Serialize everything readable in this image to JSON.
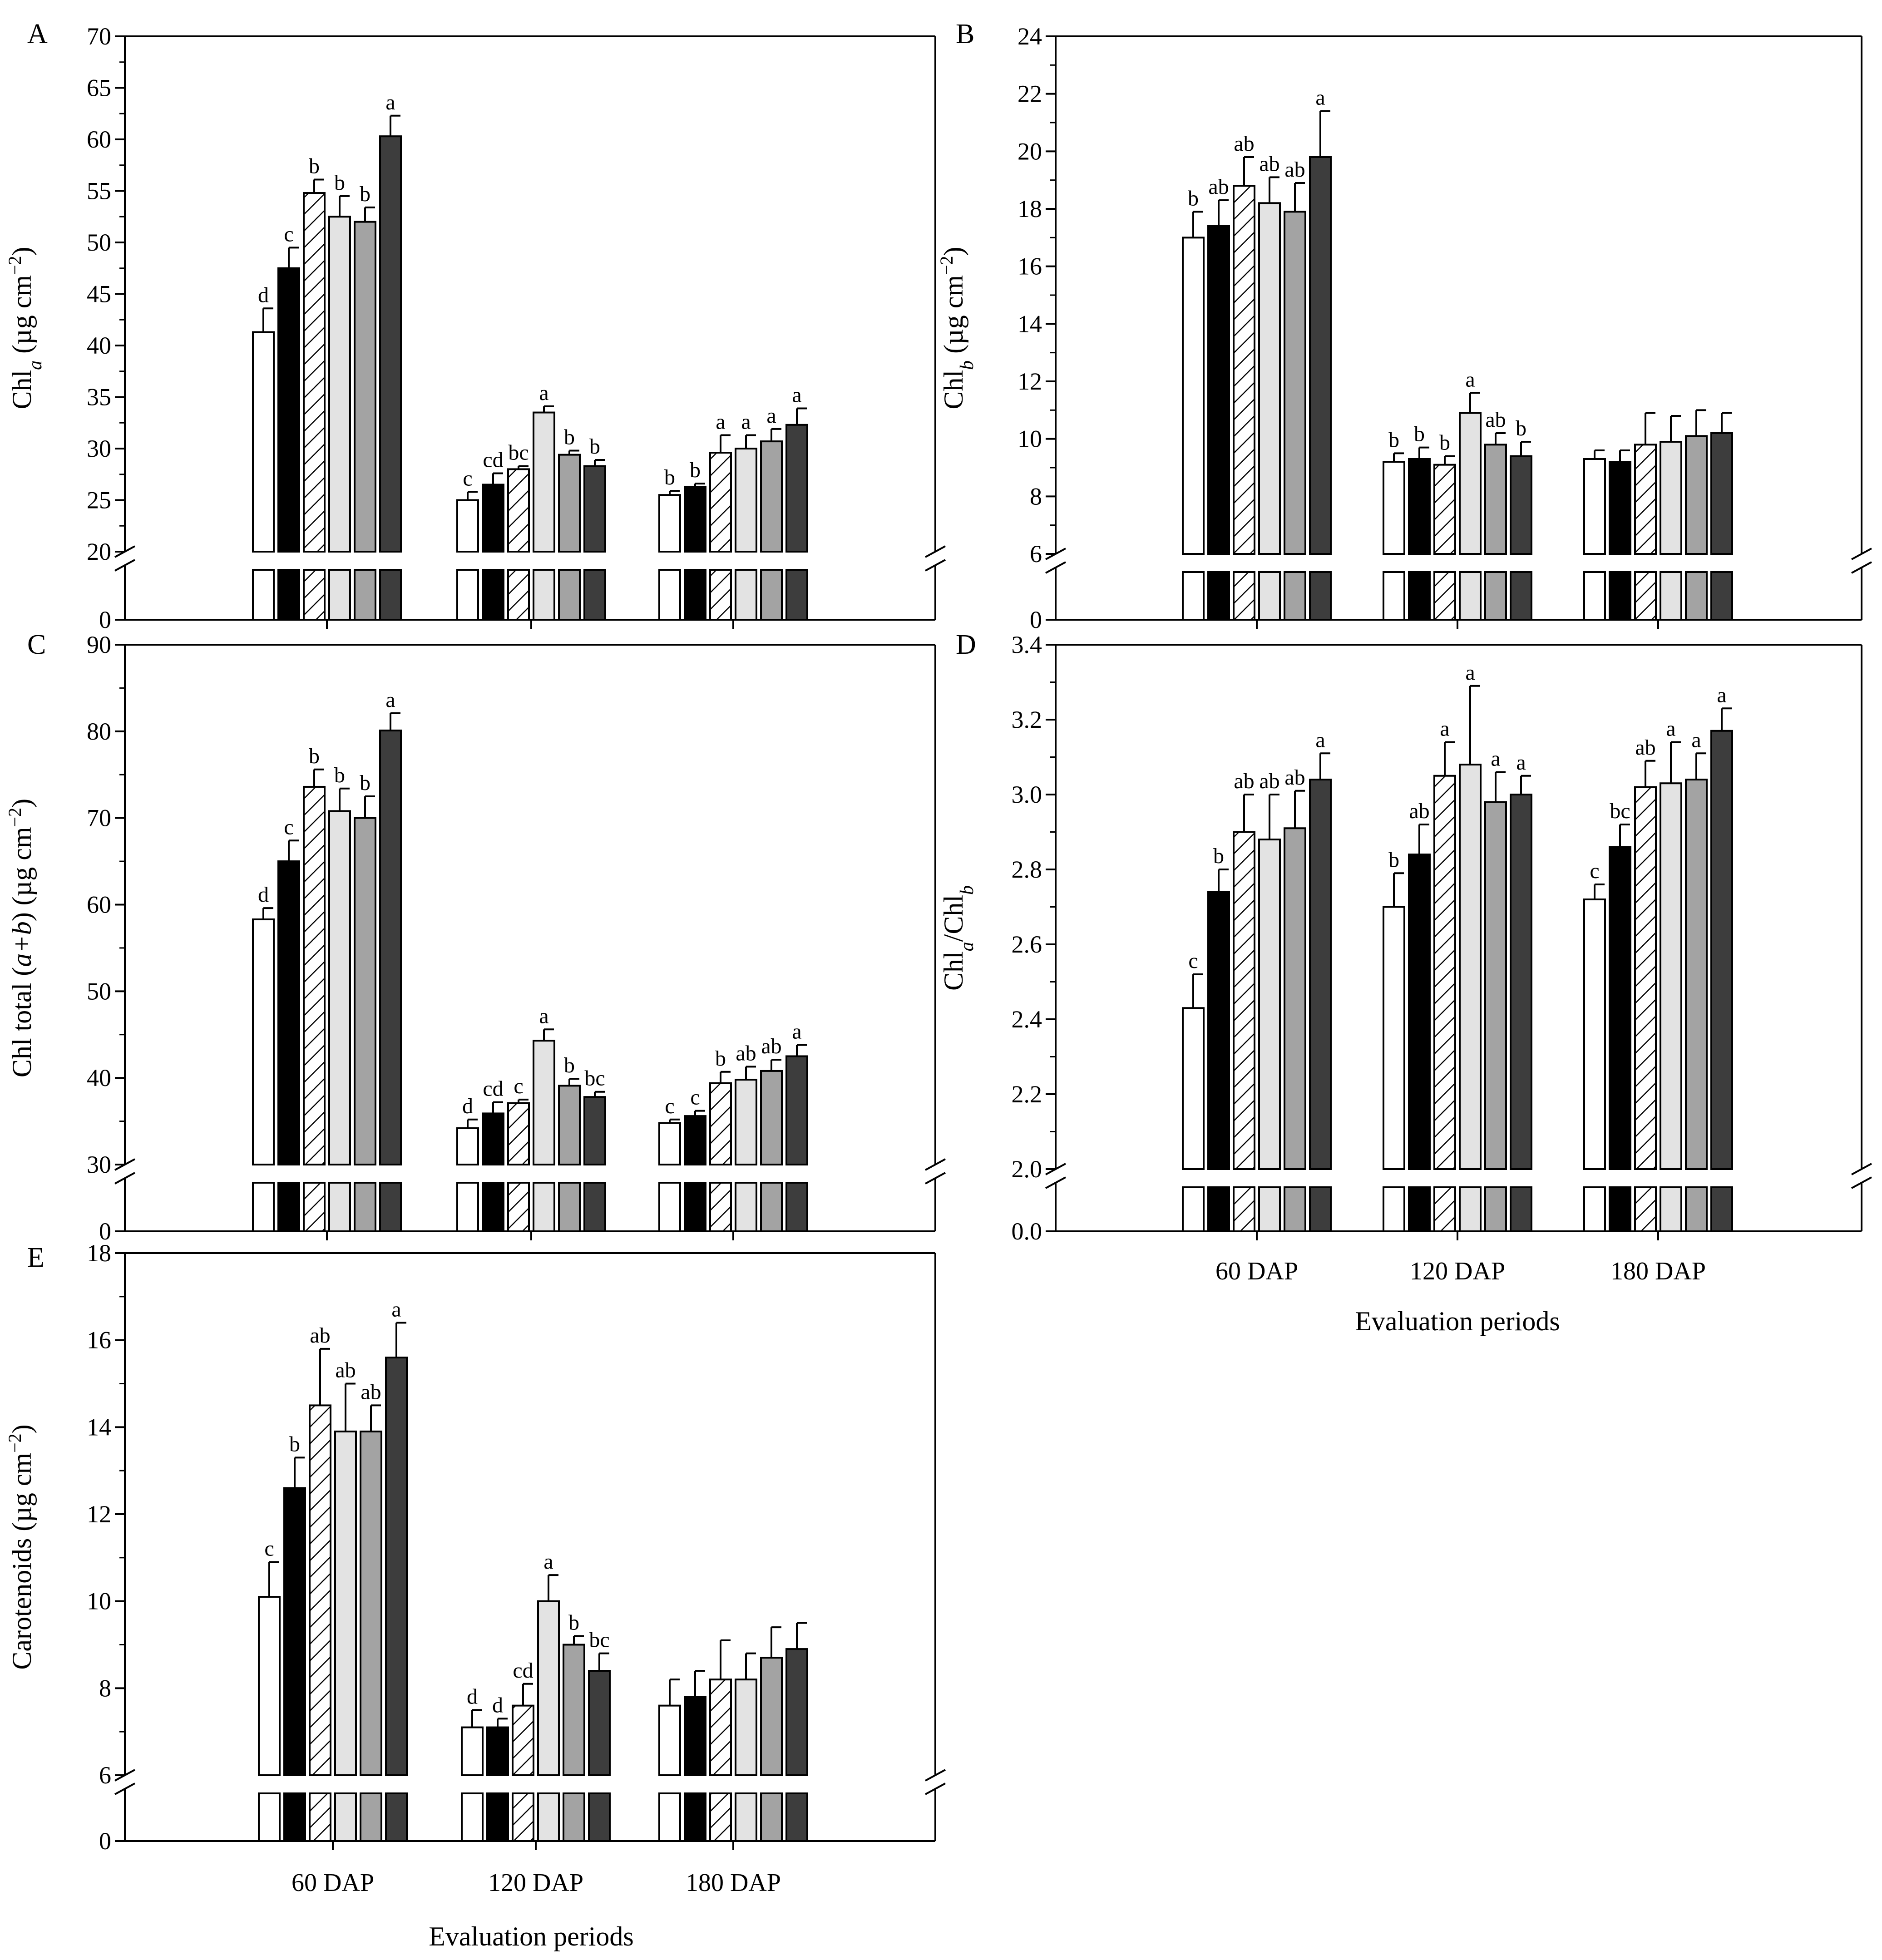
{
  "colors": {
    "treatments": [
      "#ffffff",
      "#000000",
      "hatch",
      "#e3e3e3",
      "#a3a3a3",
      "#3d3d3d"
    ],
    "axis": "#000000"
  },
  "x_axis": {
    "categories": [
      "60 DAP",
      "120 DAP",
      "180 DAP"
    ],
    "title": "Evaluation periods"
  },
  "chart_data": [
    {
      "type": "bar",
      "panel": "A",
      "ylabel_main": "Chl",
      "ylabel_sub": "a",
      "ylabel_unit": " (µg cm",
      "ylabel_exp": "−2",
      "ylabel_close": ")",
      "categories": [
        "60 DAP",
        "120 DAP",
        "180 DAP"
      ],
      "ylim": [
        20,
        70
      ],
      "yticks": [
        20,
        25,
        30,
        35,
        40,
        45,
        50,
        55,
        60,
        65,
        70
      ],
      "ytick_labels": [
        "20",
        "25",
        "30",
        "35",
        "40",
        "45",
        "50",
        "55",
        "60",
        "65",
        "70"
      ],
      "break_tick_label": "0",
      "values": [
        [
          41.3,
          47.5,
          54.8,
          52.5,
          52.0,
          60.3
        ],
        [
          25.0,
          26.5,
          28.0,
          33.5,
          29.4,
          28.3
        ],
        [
          25.5,
          26.3,
          29.6,
          30.0,
          30.7,
          32.3
        ]
      ],
      "errors": [
        [
          2.3,
          2.0,
          1.3,
          2.0,
          1.4,
          2.0
        ],
        [
          0.8,
          1.1,
          0.3,
          0.6,
          0.4,
          0.6
        ],
        [
          0.4,
          0.3,
          1.7,
          1.3,
          1.2,
          1.6
        ]
      ],
      "letters": [
        [
          "d",
          "c",
          "b",
          "b",
          "b",
          "a"
        ],
        [
          "c",
          "cd",
          "bc",
          "a",
          "b",
          "b"
        ],
        [
          "b",
          "b",
          "a",
          "a",
          "a",
          "a"
        ]
      ]
    },
    {
      "type": "bar",
      "panel": "B",
      "ylabel_main": "Chl",
      "ylabel_sub": "b",
      "ylabel_unit": " (µg cm",
      "ylabel_exp": "−2",
      "ylabel_close": ")",
      "categories": [
        "60 DAP",
        "120 DAP",
        "180 DAP"
      ],
      "ylim": [
        6,
        24
      ],
      "yticks": [
        6,
        8,
        10,
        12,
        14,
        16,
        18,
        20,
        22,
        24
      ],
      "ytick_labels": [
        "6",
        "8",
        "10",
        "12",
        "14",
        "16",
        "18",
        "20",
        "22",
        "24"
      ],
      "break_tick_label": "0",
      "values": [
        [
          17.0,
          17.4,
          18.8,
          18.2,
          17.9,
          19.8
        ],
        [
          9.2,
          9.3,
          9.1,
          10.9,
          9.8,
          9.4
        ],
        [
          9.3,
          9.2,
          9.8,
          9.9,
          10.1,
          10.2
        ]
      ],
      "errors": [
        [
          0.9,
          0.9,
          1.0,
          0.9,
          1.0,
          1.6
        ],
        [
          0.3,
          0.4,
          0.3,
          0.7,
          0.4,
          0.5
        ],
        [
          0.3,
          0.4,
          1.1,
          0.9,
          0.9,
          0.7
        ]
      ],
      "letters": [
        [
          "b",
          "ab",
          "ab",
          "ab",
          "ab",
          "a"
        ],
        [
          "b",
          "b",
          "b",
          "a",
          "ab",
          "b"
        ],
        [
          "",
          "",
          "",
          "",
          "",
          ""
        ]
      ]
    },
    {
      "type": "bar",
      "panel": "C",
      "ylabel_main": "Chl total (",
      "ylabel_ital": "a+b",
      "ylabel_unit": ") (µg cm",
      "ylabel_exp": "−2",
      "ylabel_close": ")",
      "categories": [
        "60 DAP",
        "120 DAP",
        "180 DAP"
      ],
      "ylim": [
        30,
        90
      ],
      "yticks": [
        30,
        40,
        50,
        60,
        70,
        80,
        90
      ],
      "ytick_labels": [
        "30",
        "40",
        "50",
        "60",
        "70",
        "80",
        "90"
      ],
      "break_tick_label": "0",
      "values": [
        [
          58.3,
          65.0,
          73.6,
          70.8,
          70.0,
          80.1
        ],
        [
          34.2,
          35.9,
          37.1,
          44.3,
          39.1,
          37.8
        ],
        [
          34.8,
          35.6,
          39.4,
          39.8,
          40.8,
          42.5
        ]
      ],
      "errors": [
        [
          1.3,
          2.4,
          2.0,
          2.6,
          2.5,
          2.0
        ],
        [
          1.0,
          1.3,
          0.4,
          1.3,
          0.8,
          0.6
        ],
        [
          0.4,
          0.6,
          1.3,
          1.5,
          1.3,
          1.3
        ]
      ],
      "letters": [
        [
          "d",
          "c",
          "b",
          "b",
          "b",
          "a"
        ],
        [
          "d",
          "cd",
          "c",
          "a",
          "b",
          "bc"
        ],
        [
          "c",
          "c",
          "b",
          "ab",
          "ab",
          "a"
        ]
      ]
    },
    {
      "type": "bar",
      "panel": "D",
      "ylabel_main": "Chl",
      "ylabel_sub": "a",
      "ylabel_mid": "/Chl",
      "ylabel_sub2": "b",
      "categories": [
        "60 DAP",
        "120 DAP",
        "180 DAP"
      ],
      "ylim": [
        2.0,
        3.4
      ],
      "yticks": [
        2.0,
        2.2,
        2.4,
        2.6,
        2.8,
        3.0,
        3.2,
        3.4
      ],
      "ytick_labels": [
        "2.0",
        "2.2",
        "2.4",
        "2.6",
        "2.8",
        "3.0",
        "3.2",
        "3.4"
      ],
      "break_tick_label": "0.0",
      "values": [
        [
          2.43,
          2.74,
          2.9,
          2.88,
          2.91,
          3.04
        ],
        [
          2.7,
          2.84,
          3.05,
          3.08,
          2.98,
          3.0
        ],
        [
          2.72,
          2.86,
          3.02,
          3.03,
          3.04,
          3.17
        ]
      ],
      "errors": [
        [
          0.09,
          0.06,
          0.1,
          0.12,
          0.1,
          0.07
        ],
        [
          0.09,
          0.08,
          0.09,
          0.21,
          0.08,
          0.05
        ],
        [
          0.04,
          0.06,
          0.07,
          0.11,
          0.07,
          0.06
        ]
      ],
      "letters": [
        [
          "c",
          "b",
          "ab",
          "ab",
          "ab",
          "a"
        ],
        [
          "b",
          "ab",
          "a",
          "a",
          "a",
          "a"
        ],
        [
          "c",
          "bc",
          "ab",
          "a",
          "a",
          "a"
        ]
      ]
    },
    {
      "type": "bar",
      "panel": "E",
      "ylabel_main": "Carotenoids",
      "ylabel_unit": " (µg cm",
      "ylabel_exp": "−2",
      "ylabel_close": ")",
      "categories": [
        "60 DAP",
        "120 DAP",
        "180 DAP"
      ],
      "ylim": [
        6,
        18
      ],
      "yticks": [
        6,
        8,
        10,
        12,
        14,
        16,
        18
      ],
      "ytick_labels": [
        "6",
        "8",
        "10",
        "12",
        "14",
        "16",
        "18"
      ],
      "break_tick_label": "0",
      "values": [
        [
          10.1,
          12.6,
          14.5,
          13.9,
          13.9,
          15.6
        ],
        [
          7.1,
          7.1,
          7.6,
          10.0,
          9.0,
          8.4
        ],
        [
          7.6,
          7.8,
          8.2,
          8.2,
          8.7,
          8.9
        ]
      ],
      "errors": [
        [
          0.8,
          0.7,
          1.3,
          1.1,
          0.6,
          0.8
        ],
        [
          0.4,
          0.2,
          0.5,
          0.6,
          0.2,
          0.4
        ],
        [
          0.6,
          0.6,
          0.9,
          0.6,
          0.7,
          0.6
        ]
      ],
      "letters": [
        [
          "c",
          "b",
          "ab",
          "ab",
          "ab",
          "a"
        ],
        [
          "d",
          "d",
          "cd",
          "a",
          "b",
          "bc"
        ],
        [
          "",
          "",
          "",
          "",
          "",
          ""
        ]
      ]
    }
  ]
}
